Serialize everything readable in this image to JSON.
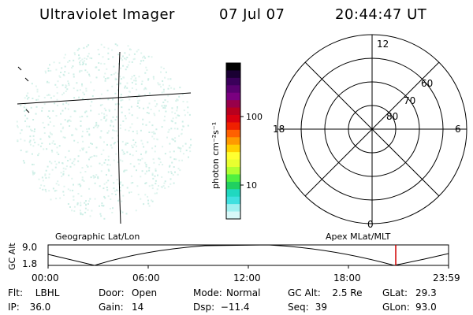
{
  "header": {
    "title": "Ultraviolet Imager",
    "date": "07 Jul 07",
    "time": "20:44:47 UT"
  },
  "colorbar": {
    "label": "photon cm⁻²s⁻¹",
    "ticks": [
      "100",
      "10"
    ],
    "colors": [
      "#000000",
      "#1a0033",
      "#3a005a",
      "#5a0070",
      "#7a0080",
      "#98004a",
      "#b8001e",
      "#d80010",
      "#f02000",
      "#ff6000",
      "#ff9a00",
      "#ffd000",
      "#ffff30",
      "#e8ff30",
      "#b0ff30",
      "#50f040",
      "#20d060",
      "#20d8c0",
      "#40e0e0",
      "#a0f0f0",
      "#d8f8f8"
    ]
  },
  "polar_plot": {
    "mlt_labels": {
      "top": "12",
      "left": "18",
      "right": "6",
      "bottom": "0"
    },
    "lat_labels": [
      "60",
      "70",
      "80"
    ]
  },
  "orbit_plot": {
    "left_label": "Geographic Lat/Lon",
    "right_label": "Apex MLat/MLT",
    "yaxis_label": "GC Alt",
    "y_ticks": [
      "9.0",
      "1.8"
    ],
    "x_ticks": [
      "00:00",
      "06:00",
      "12:00",
      "18:00",
      "23:59"
    ]
  },
  "footer": [
    [
      {
        "label": "Flt:",
        "value": "LBHL"
      },
      {
        "label": "Door:",
        "value": "Open"
      },
      {
        "label": "Mode:",
        "value": "Normal"
      },
      {
        "label": "GC Alt:",
        "value": "2.5 Re"
      },
      {
        "label": "GLat:",
        "value": "29.3"
      }
    ],
    [
      {
        "label": "IP:",
        "value": "36.0"
      },
      {
        "label": "Gain:",
        "value": "14"
      },
      {
        "label": "Dsp:",
        "value": "−11.4"
      },
      {
        "label": "Seq:",
        "value": "39"
      },
      {
        "label": "GLon:",
        "value": "93.0"
      }
    ]
  ]
}
